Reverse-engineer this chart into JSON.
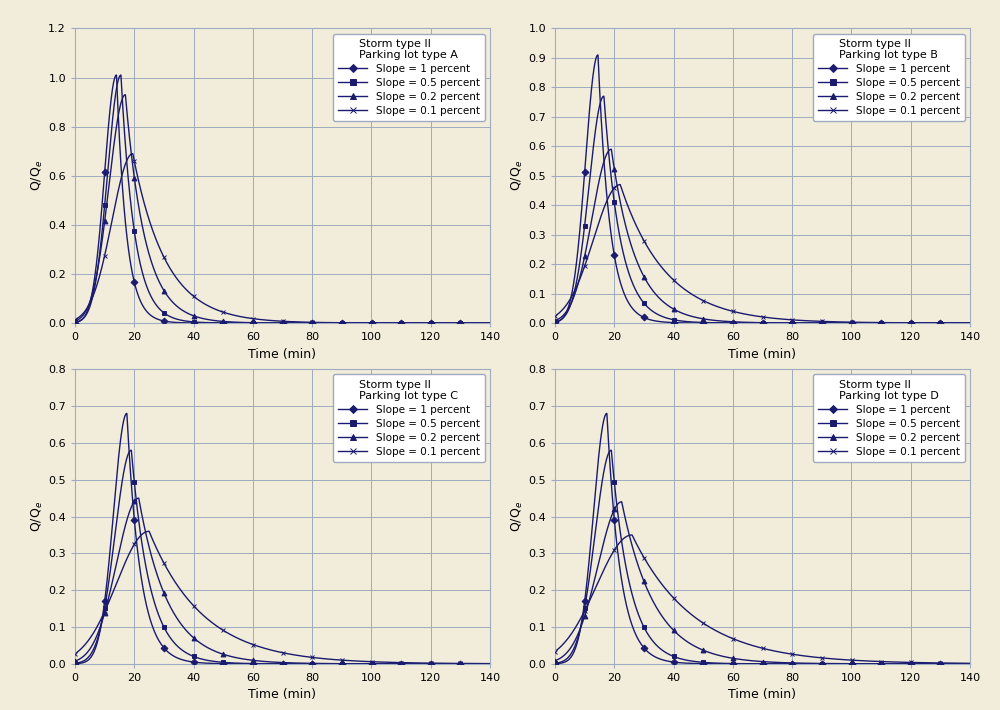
{
  "background_color": "#f2edda",
  "line_color": "#1a1a6e",
  "grid_color": "#a0aac0",
  "subplots": [
    {
      "title": "Storm type II\nParking lot type A",
      "ylim": [
        0,
        1.2
      ],
      "yticks": [
        0,
        0.2,
        0.4,
        0.6,
        0.8,
        1.0,
        1.2
      ],
      "slopes": [
        {
          "label": "Slope = 1 percent",
          "peak": 1.01,
          "tp": 14.0,
          "sigma": 4.0,
          "marker": "D",
          "decay": 0.3
        },
        {
          "label": "Slope = 0.5 percent",
          "peak": 1.01,
          "tp": 15.5,
          "sigma": 4.5,
          "marker": "s",
          "decay": 0.22
        },
        {
          "label": "Slope = 0.2 percent",
          "peak": 0.93,
          "tp": 17.0,
          "sigma": 5.5,
          "marker": "^",
          "decay": 0.15
        },
        {
          "label": "Slope = 0.1 percent",
          "peak": 0.69,
          "tp": 19.5,
          "sigma": 7.0,
          "marker": "x",
          "decay": 0.09
        }
      ]
    },
    {
      "title": "Storm type II\nParking lot type B",
      "ylim": [
        0,
        1.0
      ],
      "yticks": [
        0,
        0.1,
        0.2,
        0.3,
        0.4,
        0.5,
        0.6,
        0.7,
        0.8,
        0.9,
        1.0
      ],
      "slopes": [
        {
          "label": "Slope = 1 percent",
          "peak": 0.91,
          "tp": 14.5,
          "sigma": 4.2,
          "marker": "D",
          "decay": 0.25
        },
        {
          "label": "Slope = 0.5 percent",
          "peak": 0.77,
          "tp": 16.5,
          "sigma": 5.0,
          "marker": "s",
          "decay": 0.18
        },
        {
          "label": "Slope = 0.2 percent",
          "peak": 0.59,
          "tp": 19.0,
          "sigma": 6.5,
          "marker": "^",
          "decay": 0.12
        },
        {
          "label": "Slope = 0.1 percent",
          "peak": 0.47,
          "tp": 22.0,
          "sigma": 9.0,
          "marker": "x",
          "decay": 0.065
        }
      ]
    },
    {
      "title": "Storm type II\nParking lot type C",
      "ylim": [
        0,
        0.8
      ],
      "yticks": [
        0,
        0.1,
        0.2,
        0.3,
        0.4,
        0.5,
        0.6,
        0.7,
        0.8
      ],
      "slopes": [
        {
          "label": "Slope = 1 percent",
          "peak": 0.68,
          "tp": 17.5,
          "sigma": 4.5,
          "marker": "D",
          "decay": 0.22
        },
        {
          "label": "Slope = 0.5 percent",
          "peak": 0.58,
          "tp": 19.0,
          "sigma": 5.5,
          "marker": "s",
          "decay": 0.16
        },
        {
          "label": "Slope = 0.2 percent",
          "peak": 0.45,
          "tp": 21.5,
          "sigma": 7.5,
          "marker": "^",
          "decay": 0.1
        },
        {
          "label": "Slope = 0.1 percent",
          "peak": 0.36,
          "tp": 25.0,
          "sigma": 11.0,
          "marker": "x",
          "decay": 0.055
        }
      ]
    },
    {
      "title": "Storm type II\nParking lot type D",
      "ylim": [
        0,
        0.8
      ],
      "yticks": [
        0,
        0.1,
        0.2,
        0.3,
        0.4,
        0.5,
        0.6,
        0.7,
        0.8
      ],
      "slopes": [
        {
          "label": "Slope = 1 percent",
          "peak": 0.68,
          "tp": 17.5,
          "sigma": 4.5,
          "marker": "D",
          "decay": 0.22
        },
        {
          "label": "Slope = 0.5 percent",
          "peak": 0.58,
          "tp": 19.0,
          "sigma": 5.5,
          "marker": "s",
          "decay": 0.16
        },
        {
          "label": "Slope = 0.2 percent",
          "peak": 0.44,
          "tp": 22.5,
          "sigma": 8.0,
          "marker": "^",
          "decay": 0.09
        },
        {
          "label": "Slope = 0.1 percent",
          "peak": 0.35,
          "tp": 26.0,
          "sigma": 12.0,
          "marker": "x",
          "decay": 0.048
        }
      ]
    }
  ],
  "xticks": [
    0,
    20,
    40,
    60,
    80,
    100,
    120,
    140
  ],
  "xlim": [
    0,
    140
  ]
}
